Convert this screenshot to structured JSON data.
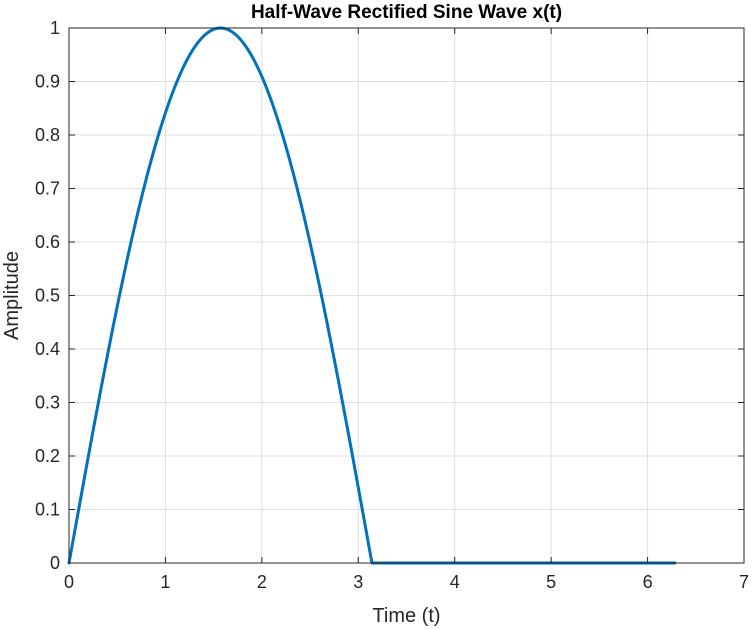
{
  "chart_data": {
    "type": "line",
    "title": "Half-Wave Rectified Sine Wave x(t)",
    "xlabel": "Time (t)",
    "ylabel": "Amplitude",
    "xlim": [
      0,
      7
    ],
    "ylim": [
      0,
      1
    ],
    "xticks": [
      0,
      1,
      2,
      3,
      4,
      5,
      6,
      7
    ],
    "yticks": [
      0,
      0.1,
      0.2,
      0.3,
      0.4,
      0.5,
      0.6,
      0.7,
      0.8,
      0.9,
      1
    ],
    "xtick_labels": [
      "0",
      "1",
      "2",
      "3",
      "4",
      "5",
      "6",
      "7"
    ],
    "ytick_labels": [
      "0",
      "0.1",
      "0.2",
      "0.3",
      "0.4",
      "0.5",
      "0.6",
      "0.7",
      "0.8",
      "0.9",
      "1"
    ],
    "grid": true,
    "series": [
      {
        "color": "#0072bd",
        "x": [
          0,
          0.1571,
          0.3142,
          0.4712,
          0.6283,
          0.7854,
          0.9425,
          1.0996,
          1.2566,
          1.4137,
          1.5708,
          1.7279,
          1.885,
          2.042,
          2.1991,
          2.3562,
          2.5133,
          2.6704,
          2.8274,
          2.9845,
          3.1416,
          3.2987,
          3.4558,
          3.6128,
          3.7699,
          3.927,
          4.0841,
          4.2412,
          4.3982,
          4.5553,
          4.7124,
          4.8695,
          5.0265,
          5.1836,
          5.3407,
          5.4978,
          5.6549,
          5.812,
          5.969,
          6.1261,
          6.2832
        ],
        "y": [
          0,
          0.1564,
          0.309,
          0.454,
          0.5878,
          0.7071,
          0.809,
          0.891,
          0.9511,
          0.9877,
          1,
          0.9877,
          0.9511,
          0.891,
          0.809,
          0.7071,
          0.5878,
          0.454,
          0.309,
          0.1564,
          0,
          0,
          0,
          0,
          0,
          0,
          0,
          0,
          0,
          0,
          0,
          0,
          0,
          0,
          0,
          0,
          0,
          0,
          0,
          0,
          0
        ]
      }
    ]
  }
}
